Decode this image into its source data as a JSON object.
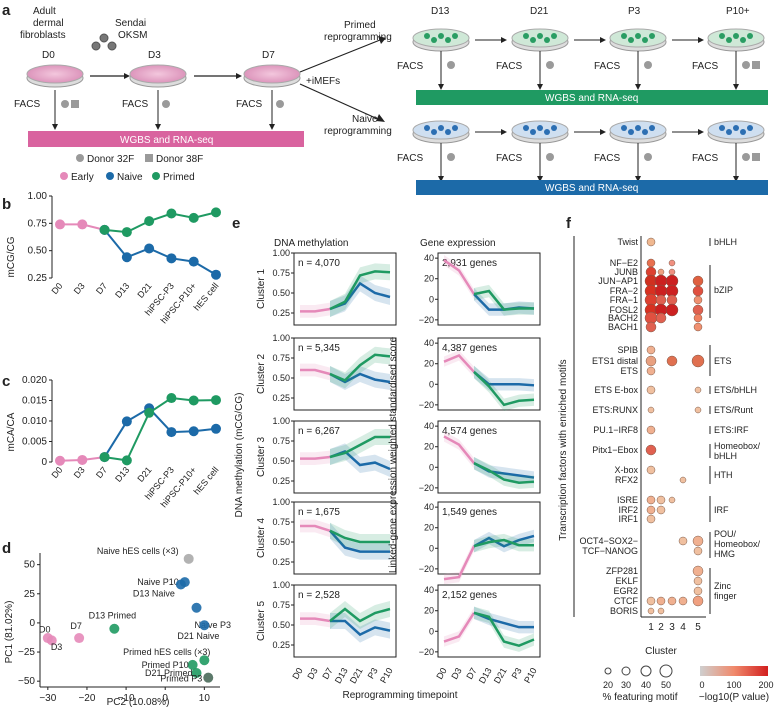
{
  "colors": {
    "early": "#e589b9",
    "naive": "#1c6aa8",
    "primed": "#1f9a62",
    "gray": "#9a9a9a",
    "barPink": "#d9639f",
    "barGreen": "#1f9a62",
    "barBlue": "#1c6aa8"
  },
  "panel_a": {
    "label": "a",
    "d0_label": "Adult dermal fibroblasts D0",
    "d0_lines": [
      "Adult",
      "dermal",
      "fibroblasts",
      "D0"
    ],
    "sendai": "Sendai",
    "oksm": "OKSM",
    "d3": "D3",
    "d7": "D7",
    "imefs": "+iMEFs",
    "primed_route": [
      "Primed",
      "reprogramming"
    ],
    "naive_route": [
      "Naive",
      "reprogramming"
    ],
    "top_stages": [
      "D13",
      "D21",
      "P3",
      "P10+"
    ],
    "facs": "FACS",
    "wgbs_label": "WGBS and RNA-seq",
    "donor1": "Donor 32F",
    "donor2": "Donor 38F",
    "legend": [
      "Early",
      "Naive",
      "Primed"
    ]
  },
  "panel_b": {
    "label": "b",
    "ylabel": "mCG/CG",
    "yticks": [
      "0.25",
      "0.50",
      "0.75",
      "1.00"
    ]
  },
  "panel_c": {
    "label": "c",
    "ylabel": "mCA/CA",
    "yticks": [
      "0",
      "0.005",
      "0.010",
      "0.015",
      "0.020"
    ]
  },
  "xcats": [
    "D0",
    "D3",
    "D7",
    "D13",
    "D21",
    "hiPSC-P3",
    "hiPSC-P10+",
    "hES cell"
  ],
  "panel_d": {
    "label": "d",
    "xlabel": "PC2 (10.08%)",
    "ylabel": "PC1 (81.02%)",
    "xticks": [
      "−30",
      "−20",
      "−10",
      "0",
      "10"
    ],
    "yticks": [
      "−50",
      "−25",
      "0",
      "25",
      "50"
    ],
    "point_labels": [
      "Naive hES cells (×3)",
      "Naive P10",
      "D13 Naive",
      "Naive P3",
      "D21 Naive",
      "D7",
      "D0",
      "D3",
      "D13 Primed",
      "Primed hES cells (×3)",
      "Primed P10",
      "D21 Primed",
      "Primed P3"
    ]
  },
  "panel_e": {
    "label": "e",
    "left_title": "DNA methylation",
    "right_title": "Gene expression",
    "left_ylabel": "DNA methylation (mCG/CG)",
    "right_ylabel": "Linked-gene expression weighted standardised score",
    "xlabel": "Reprogramming timepoint",
    "xticks": [
      "D0",
      "D3",
      "D7",
      "D13",
      "D21",
      "P3",
      "P10"
    ],
    "meth_yticks": [
      "0.25",
      "0.50",
      "0.75",
      "1.00"
    ],
    "expr_yticks": [
      "−20",
      "0",
      "20",
      "40"
    ],
    "clusters": [
      {
        "name": "Cluster 1",
        "n": "n = 4,070",
        "genes": "2,931 genes"
      },
      {
        "name": "Cluster 2",
        "n": "n = 5,345",
        "genes": "4,387 genes"
      },
      {
        "name": "Cluster 3",
        "n": "n = 6,267",
        "genes": "4,574 genes"
      },
      {
        "name": "Cluster 4",
        "n": "n = 1,675",
        "genes": "1,549 genes"
      },
      {
        "name": "Cluster 5",
        "n": "n = 2,528",
        "genes": "2,152 genes"
      }
    ]
  },
  "panel_f": {
    "label": "f",
    "ylabel": "Transcription factors with enriched motifs",
    "xlabel": "Cluster",
    "xticks": [
      "1",
      "2",
      "3",
      "4",
      "5"
    ],
    "tfs": [
      "Twist",
      "NF−E2",
      "JUNB",
      "JUN−AP1",
      "FRA−2",
      "FRA−1",
      "FOSL2",
      "BACH2",
      "BACH1",
      "SPIB",
      "ETS1 distal",
      "ETS",
      "ETS E-box",
      "ETS:RUNX",
      "PU.1−IRF8",
      "Pitx1−Ebox",
      "X-box",
      "RFX2",
      "ISRE",
      "IRF2",
      "IRF1",
      "OCT4−SOX2−",
      "TCF−NANOG",
      "ZFP281",
      "EKLF",
      "EGR2",
      "CTCF",
      "BORIS"
    ],
    "families": [
      "bHLH",
      "bZIP",
      "ETS",
      "ETS/bHLH",
      "ETS/Runt",
      "ETS:IRF",
      "Homeobox/",
      "bHLH",
      "HTH",
      "IRF",
      "POU/",
      "Homeobox/",
      "HMG",
      "Zinc",
      "finger"
    ],
    "size_legend": [
      "20",
      "30",
      "40",
      "50"
    ],
    "size_title": "% featuring motif",
    "color_legend": [
      "0",
      "100",
      "200"
    ],
    "color_title": "−log10(P value)"
  }
}
